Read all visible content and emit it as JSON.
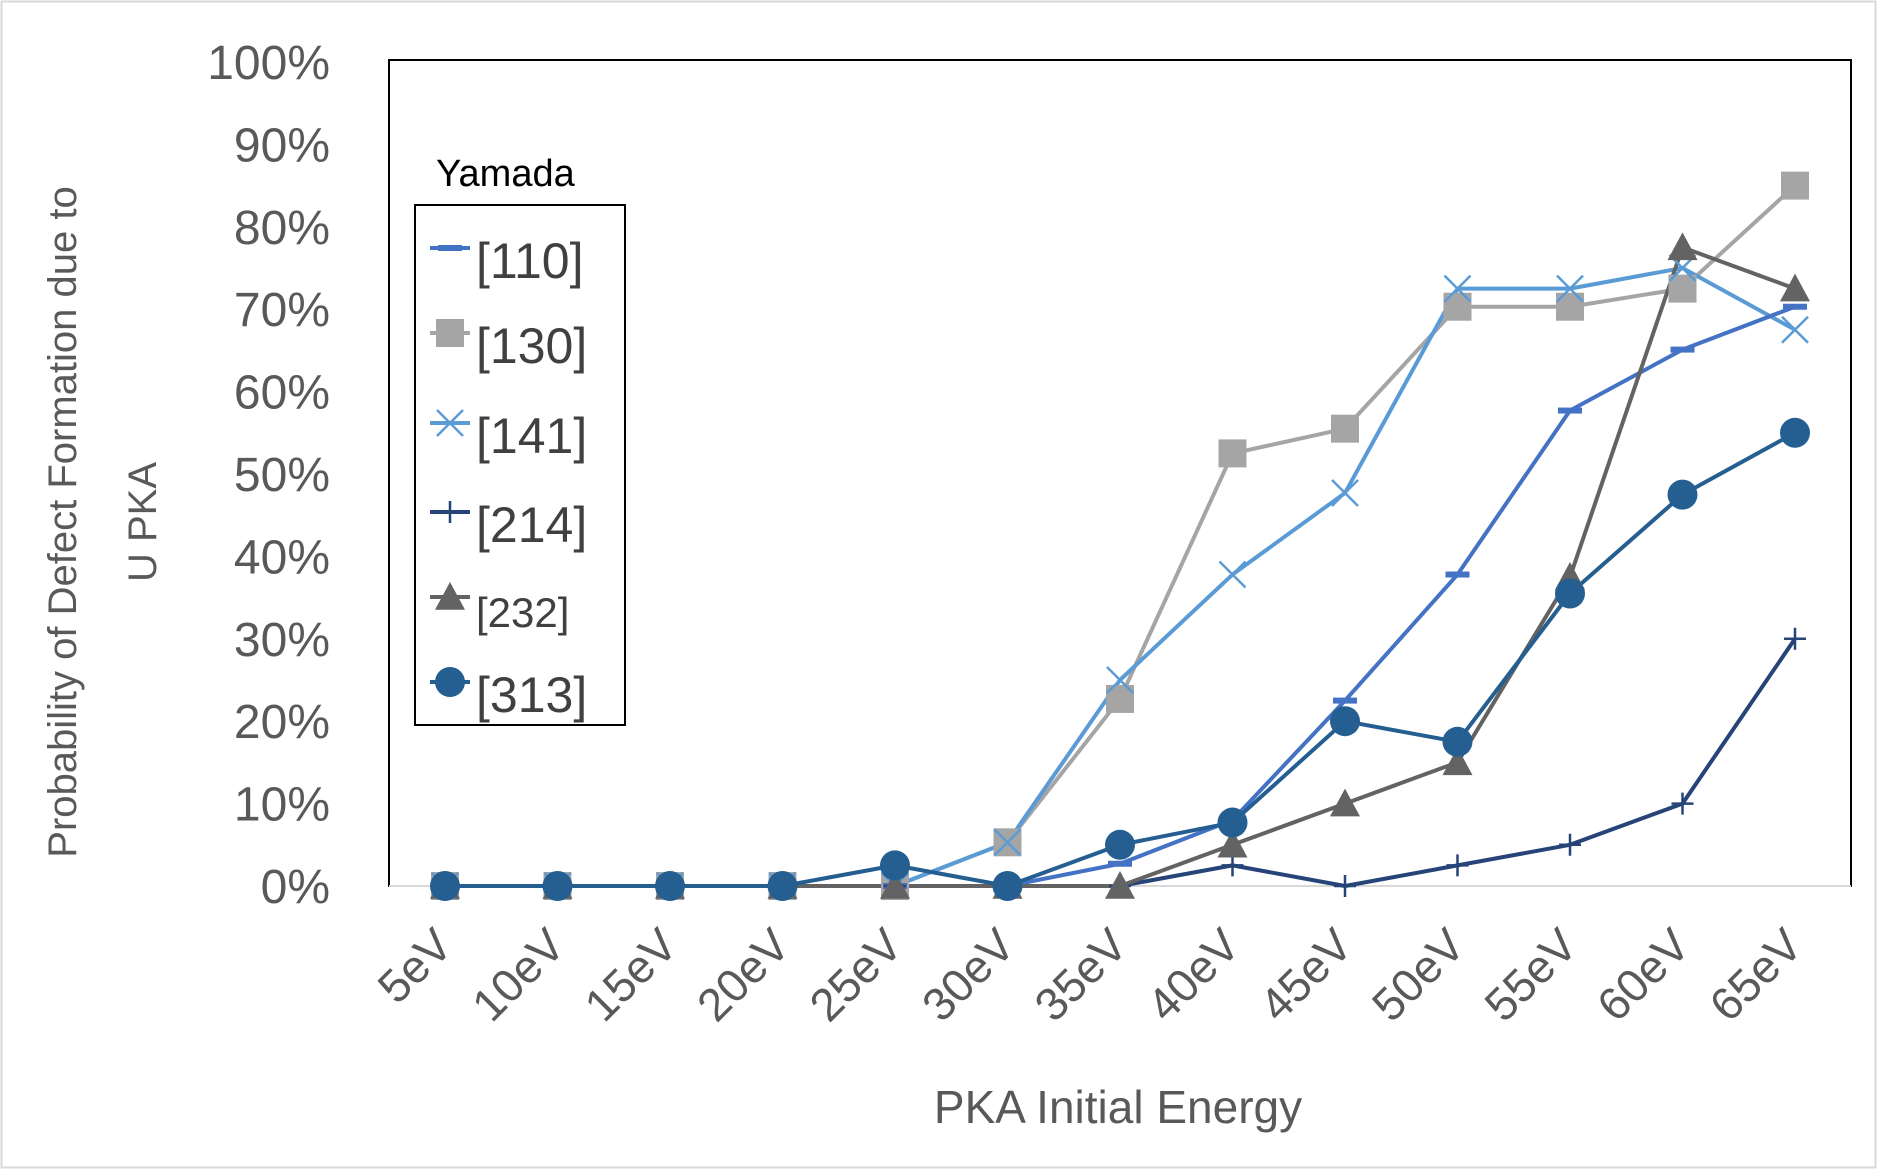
{
  "chart_data": {
    "type": "line",
    "xlabel": "PKA Initial Energy",
    "ylabel_line1": "Probability of Defect Formation due to",
    "ylabel_line2": "U PKA",
    "categories": [
      "5eV",
      "10eV",
      "15eV",
      "20eV",
      "25eV",
      "30eV",
      "35eV",
      "40eV",
      "45eV",
      "50eV",
      "55eV",
      "60eV",
      "65eV"
    ],
    "yticks": [
      "0%",
      "10%",
      "20%",
      "30%",
      "40%",
      "50%",
      "60%",
      "70%",
      "80%",
      "90%",
      "100%"
    ],
    "ylim": [
      0,
      100
    ],
    "grid": false,
    "legend": {
      "title": "Yamada",
      "position": "upper-left"
    },
    "series": [
      {
        "name": "[110]",
        "marker": "dash",
        "color": "#4472C4",
        "values": [
          0,
          0,
          0,
          0,
          0,
          0,
          2.7,
          8,
          22.5,
          37.8,
          57.7,
          65.1,
          70.3
        ]
      },
      {
        "name": "[130]",
        "marker": "square",
        "color": "#A5A5A5",
        "values": [
          0,
          0,
          0,
          0,
          0,
          5.3,
          22.7,
          52.5,
          55.5,
          70.3,
          70.3,
          72.5,
          85
        ]
      },
      {
        "name": "[141]",
        "marker": "x",
        "color": "#5B9BD5",
        "values": [
          0,
          0,
          0,
          0,
          0,
          5.3,
          25,
          37.8,
          47.7,
          72.5,
          72.5,
          75,
          67.5
        ]
      },
      {
        "name": "[214]",
        "marker": "plus",
        "color": "#264478",
        "values": [
          0,
          0,
          0,
          0,
          0,
          0,
          0,
          2.5,
          0,
          2.5,
          5,
          10,
          30
        ]
      },
      {
        "name": "[232]",
        "marker": "triangle",
        "color": "#636363",
        "values": [
          0,
          0,
          0,
          0,
          0,
          0,
          0,
          5,
          10,
          15,
          37.5,
          77.5,
          72.5
        ]
      },
      {
        "name": "[313]",
        "marker": "circle",
        "color": "#255E91",
        "values": [
          0,
          0,
          0,
          0,
          2.5,
          0,
          5,
          7.7,
          20,
          17.5,
          35.5,
          47.5,
          55
        ]
      }
    ]
  }
}
